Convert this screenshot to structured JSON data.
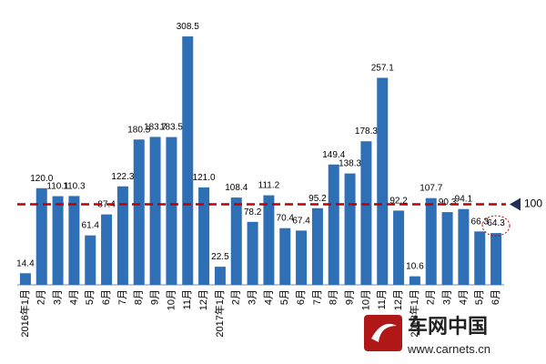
{
  "chart_data": {
    "type": "bar",
    "categories": [
      "2016年1月",
      "2月",
      "3月",
      "4月",
      "5月",
      "6月",
      "7月",
      "8月",
      "9月",
      "10月",
      "11月",
      "12月",
      "2017年1月",
      "2月",
      "3月",
      "4月",
      "5月",
      "6月",
      "7月",
      "8月",
      "9月",
      "10月",
      "11月",
      "12月",
      "2018年1月",
      "2月",
      "3月",
      "4月",
      "5月",
      "6月"
    ],
    "values": [
      14.4,
      120,
      110.1,
      110.3,
      61.4,
      87.4,
      122.3,
      180.5,
      183.7,
      183.5,
      308.5,
      121,
      22.5,
      108.4,
      78.2,
      111.2,
      70.4,
      67.4,
      95.2,
      149.4,
      138.3,
      178.3,
      257.1,
      92.2,
      10.6,
      107.7,
      90.3,
      94.1,
      66.3,
      64.3
    ],
    "value_labels": [
      "14.4",
      "120.0",
      "110.1",
      "110.3",
      "61.4",
      "87.4",
      "122.3",
      "180.5",
      "183.7",
      "183.5",
      "308.5",
      "121.0",
      "22.5",
      "108.4",
      "78.2",
      "111.2",
      "70.4",
      "67.4",
      "95.2",
      "149.4",
      "138.3",
      "178.3",
      "257.1",
      "92.2",
      "10.6",
      "107.7",
      "90.3",
      "94.1",
      "66.3",
      "64.3"
    ],
    "color": "#2f6fb6",
    "ylim": [
      0,
      330
    ],
    "reference_line": {
      "value": 100,
      "color": "#c00000"
    }
  },
  "watermark": {
    "name": "车网中国",
    "url": "www.carnets.cn"
  }
}
